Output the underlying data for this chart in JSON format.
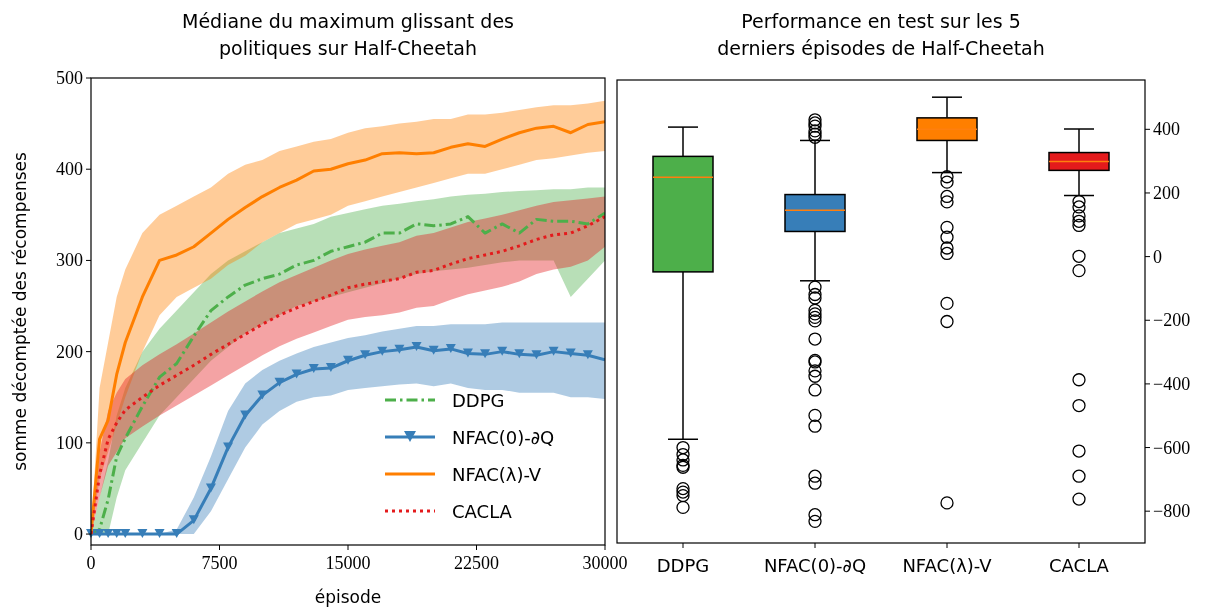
{
  "chart_data": [
    {
      "type": "line",
      "title": "Médiane du maximum glissant des\npolitiques sur Half-Cheetah",
      "xlabel": "épisode",
      "ylabel": "somme décomptée des récompenses",
      "x": [
        0,
        500,
        1000,
        1500,
        2000,
        3000,
        4000,
        5000,
        6000,
        7000,
        8000,
        9000,
        10000,
        11000,
        12000,
        13000,
        14000,
        15000,
        16000,
        17000,
        18000,
        19000,
        20000,
        21000,
        22000,
        23000,
        24000,
        25000,
        26000,
        27000,
        28000,
        29000,
        30000
      ],
      "xlim": [
        0,
        30000
      ],
      "xticks": [
        0,
        7500,
        15000,
        22500,
        30000
      ],
      "ylim": [
        -12,
        500
      ],
      "yticks": [
        0,
        100,
        200,
        300,
        400,
        500
      ],
      "legend": "bottom right",
      "grid": false,
      "series": [
        {
          "name": "DDPG",
          "color": "#4daf4a",
          "line_style": "dashed",
          "values": [
            0,
            5,
            38,
            85,
            105,
            140,
            172,
            187,
            217,
            245,
            260,
            273,
            280,
            285,
            295,
            300,
            310,
            315,
            320,
            330,
            330,
            340,
            338,
            340,
            348,
            330,
            340,
            330,
            345,
            343,
            343,
            340,
            352
          ],
          "upper": [
            0,
            40,
            80,
            130,
            160,
            200,
            225,
            245,
            265,
            285,
            300,
            310,
            320,
            330,
            335,
            340,
            348,
            352,
            356,
            360,
            362,
            365,
            367,
            370,
            372,
            373,
            375,
            376,
            377,
            378,
            378,
            380,
            380
          ],
          "lower": [
            0,
            0,
            0,
            40,
            70,
            100,
            130,
            150,
            170,
            190,
            205,
            220,
            230,
            240,
            250,
            255,
            260,
            265,
            270,
            275,
            280,
            285,
            288,
            290,
            292,
            295,
            298,
            300,
            300,
            300,
            260,
            280,
            300
          ]
        },
        {
          "name": "NFAC(0)-∂Q",
          "color": "#377eb8",
          "line_style": "solid",
          "marker": "triangle",
          "values": [
            0,
            0,
            0,
            0,
            0,
            0,
            0,
            0,
            15,
            50,
            95,
            130,
            152,
            166,
            175,
            181,
            182,
            190,
            196,
            200,
            202,
            205,
            201,
            203,
            198,
            197,
            200,
            197,
            196,
            200,
            198,
            196,
            191
          ],
          "upper": [
            0,
            0,
            0,
            0,
            0,
            0,
            0,
            5,
            40,
            85,
            135,
            165,
            180,
            190,
            198,
            205,
            210,
            215,
            218,
            222,
            225,
            228,
            228,
            230,
            230,
            230,
            232,
            232,
            232,
            232,
            232,
            232,
            232
          ],
          "lower": [
            0,
            0,
            0,
            0,
            0,
            0,
            0,
            0,
            0,
            25,
            60,
            95,
            120,
            135,
            145,
            150,
            152,
            158,
            160,
            162,
            164,
            165,
            162,
            165,
            160,
            158,
            158,
            155,
            155,
            155,
            150,
            150,
            148
          ]
        },
        {
          "name": "NFAC(λ)-V",
          "color": "#ff7f00",
          "line_style": "solid",
          "values": [
            0,
            104,
            125,
            175,
            210,
            260,
            300,
            306,
            315,
            330,
            345,
            358,
            370,
            380,
            388,
            398,
            400,
            406,
            410,
            417,
            418,
            417,
            418,
            424,
            428,
            425,
            433,
            440,
            445,
            447,
            440,
            449,
            452
          ],
          "upper": [
            0,
            160,
            210,
            260,
            290,
            330,
            350,
            360,
            370,
            380,
            395,
            405,
            410,
            420,
            425,
            430,
            433,
            440,
            445,
            447,
            450,
            452,
            455,
            455,
            460,
            460,
            462,
            465,
            468,
            470,
            470,
            472,
            475
          ],
          "lower": [
            0,
            60,
            90,
            120,
            150,
            200,
            240,
            260,
            270,
            280,
            295,
            305,
            320,
            330,
            340,
            345,
            350,
            360,
            365,
            370,
            375,
            380,
            385,
            390,
            395,
            395,
            400,
            405,
            410,
            412,
            415,
            418,
            420
          ]
        },
        {
          "name": "CACLA",
          "color": "#e41a1c",
          "line_style": "dotted",
          "values": [
            0,
            65,
            104,
            122,
            136,
            150,
            163,
            174,
            185,
            197,
            208,
            219,
            230,
            240,
            248,
            255,
            262,
            270,
            274,
            277,
            280,
            287,
            289,
            296,
            302,
            306,
            310,
            316,
            323,
            328,
            330,
            338,
            348
          ],
          "upper": [
            0,
            90,
            135,
            155,
            170,
            185,
            197,
            208,
            220,
            232,
            244,
            255,
            266,
            276,
            284,
            292,
            300,
            307,
            312,
            316,
            320,
            327,
            330,
            336,
            342,
            346,
            350,
            355,
            360,
            364,
            366,
            368,
            370
          ],
          "lower": [
            0,
            40,
            75,
            90,
            105,
            118,
            130,
            141,
            152,
            163,
            174,
            185,
            196,
            206,
            214,
            221,
            228,
            235,
            238,
            240,
            243,
            248,
            250,
            257,
            263,
            267,
            271,
            277,
            285,
            290,
            293,
            300,
            315
          ]
        }
      ]
    },
    {
      "type": "box",
      "title": "Performance en test sur les 5\nderniers épisodes de Half-Cheetah",
      "categories": [
        "DDPG",
        "NFAC(0)-∂Q",
        "NFAC(λ)-V",
        "CACLA"
      ],
      "colors": [
        "#4daf4a",
        "#377eb8",
        "#ff7f00",
        "#e41a1c"
      ],
      "ylim": [
        -900,
        555
      ],
      "yticks": [
        {
          "value": -800,
          "label": "−800"
        },
        {
          "value": -600,
          "label": "−600"
        },
        {
          "value": -400,
          "label": "−400"
        },
        {
          "value": -200,
          "label": "−200"
        },
        0,
        200,
        400
      ],
      "grid": false,
      "boxes": [
        {
          "low": -574,
          "q1": -48,
          "median": 249,
          "q3": 315,
          "high": 407,
          "outliers": [
            -600,
            -622,
            -639,
            -656,
            -662,
            -729,
            -740,
            -751,
            -788
          ]
        },
        {
          "low": -76,
          "q1": 79,
          "median": 146,
          "q3": 195,
          "high": 365,
          "outliers": [
            430,
            420,
            410,
            395,
            385,
            375,
            -96,
            -119,
            -130,
            -169,
            -180,
            -191,
            -202,
            -259,
            -326,
            -331,
            -359,
            -376,
            -419,
            -499,
            -533,
            -690,
            -712,
            -811,
            -832
          ]
        },
        {
          "low": 264,
          "q1": 365,
          "median": 400,
          "q3": 436,
          "high": 501,
          "outliers": [
            251,
            234,
            189,
            172,
            92,
            61,
            27,
            10,
            -147,
            -204,
            -774
          ]
        },
        {
          "low": 192,
          "q1": 271,
          "median": 299,
          "q3": 327,
          "high": 401,
          "outliers": [
            173,
            156,
            128,
            111,
            98,
            1,
            -44,
            -387,
            -468,
            -611,
            -690,
            -762
          ]
        }
      ]
    }
  ]
}
